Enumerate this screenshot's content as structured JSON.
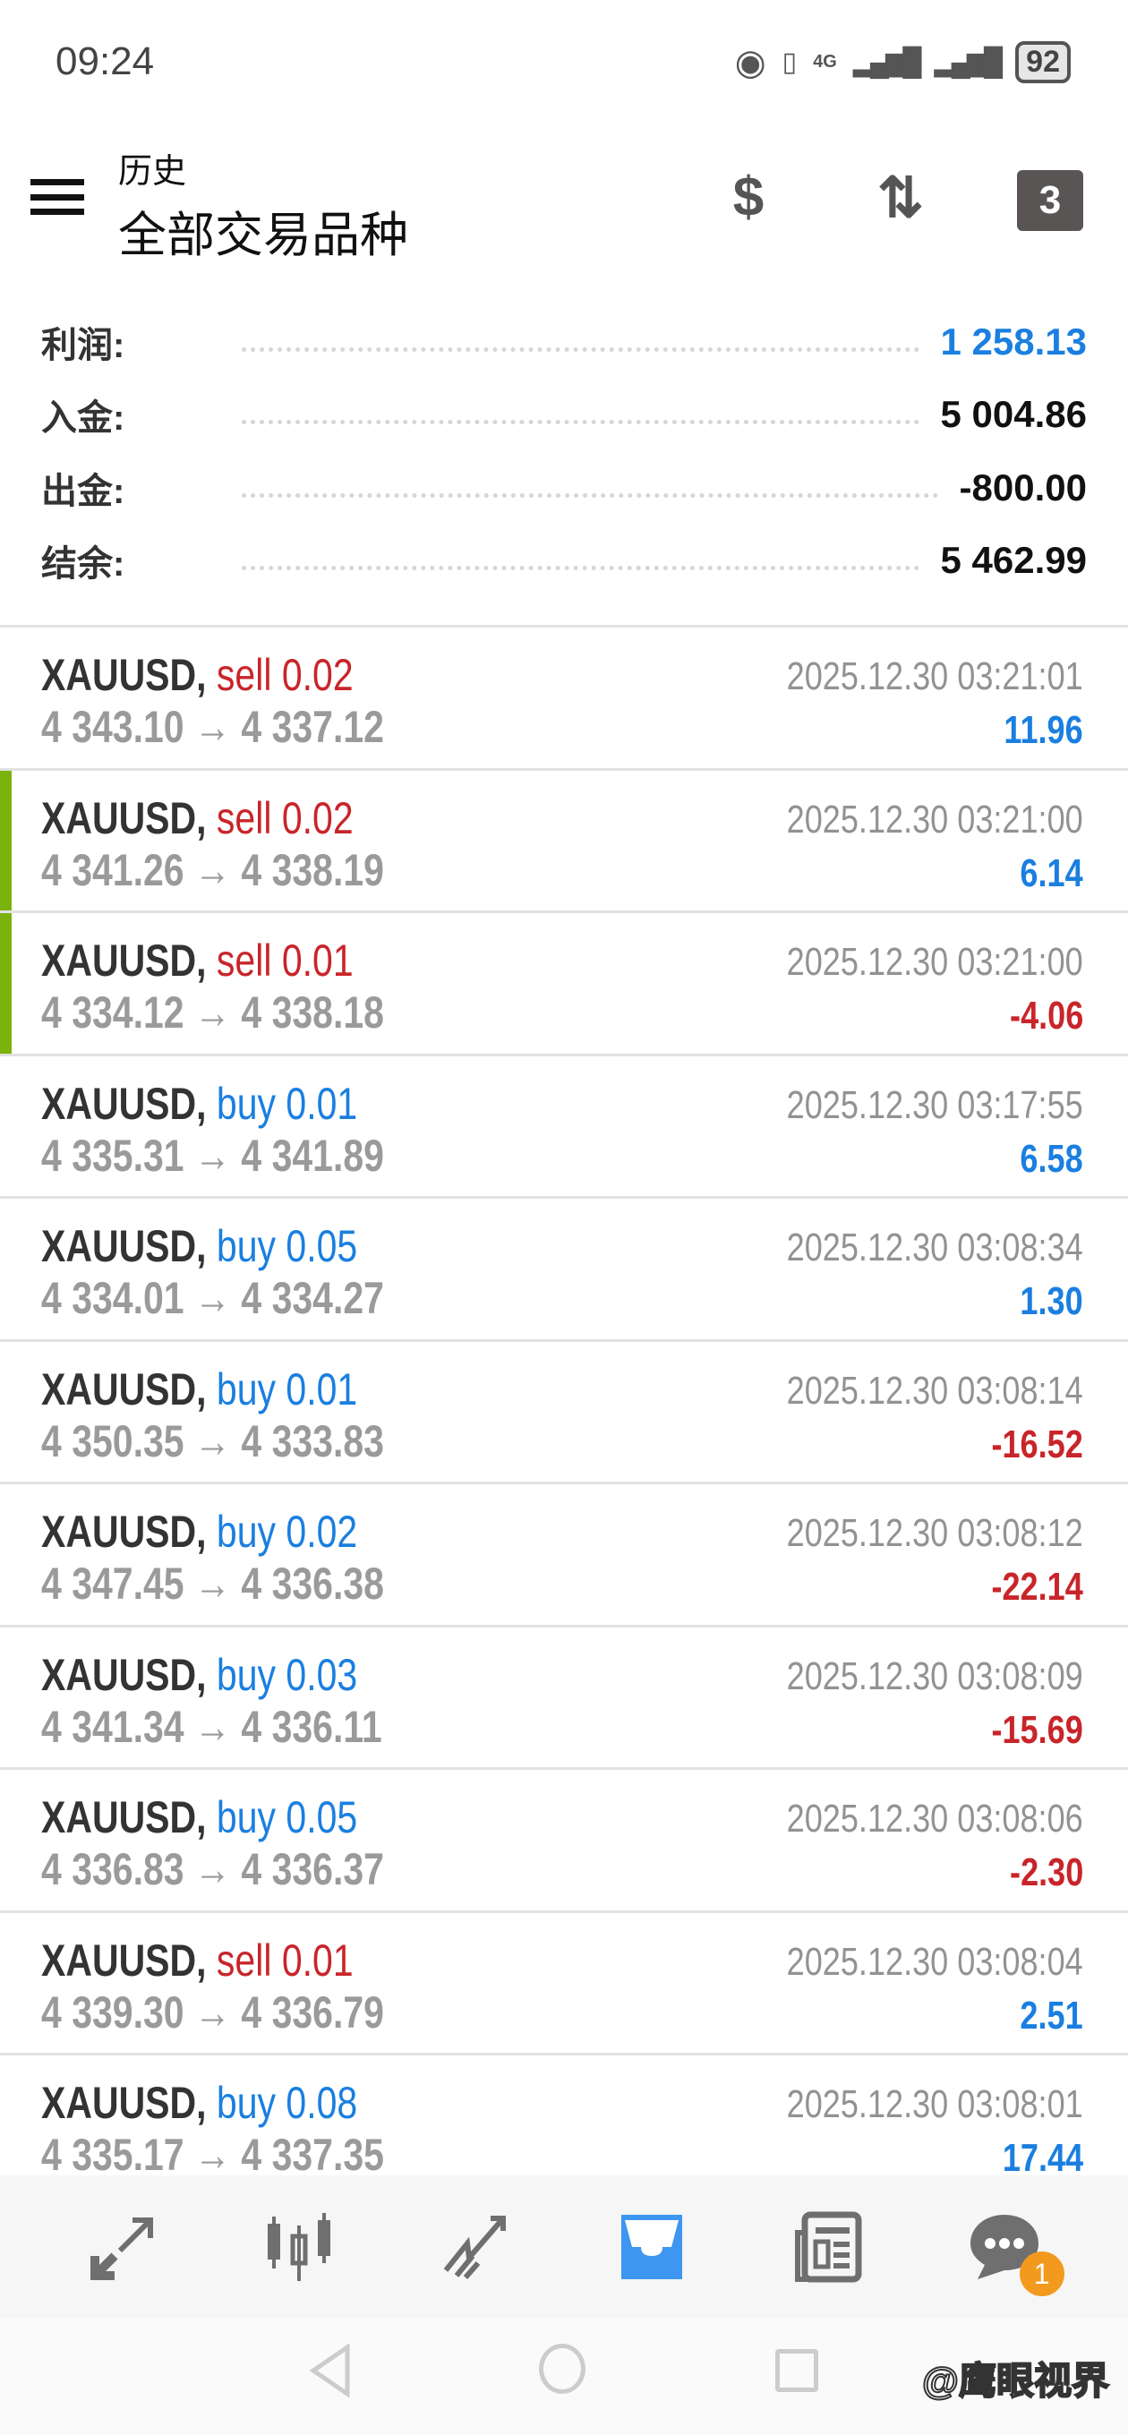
{
  "status_bar": {
    "time": "09:24",
    "network": "4G",
    "battery": "92"
  },
  "header": {
    "subtitle": "历史",
    "title": "全部交易品种",
    "icons": [
      "menu-icon",
      "currency-exchange-icon",
      "sort-icon",
      "calendar-icon"
    ],
    "calendar_day": "3"
  },
  "summary": [
    {
      "label": "利润:",
      "value": "1 258.13",
      "color": "#1a7fe0"
    },
    {
      "label": "入金:",
      "value": "5 004.86",
      "color": "#111111"
    },
    {
      "label": "出金:",
      "value": "-800.00",
      "color": "#111111"
    },
    {
      "label": "结余:",
      "value": "5 462.99",
      "color": "#111111"
    }
  ],
  "colors": {
    "sell": "#c8252a",
    "buy": "#1a7fe0",
    "profit": "#1a7fe0",
    "loss": "#c8252a",
    "accent": "#3d96ef",
    "marker": "#7cb20e"
  },
  "trades": [
    {
      "symbol": "XAUUSD,",
      "side": "sell 0.02",
      "prices": "4 343.10 → 4 337.12",
      "time": "2025.12.30 03:21:01",
      "profit": "11.96",
      "marked": false
    },
    {
      "symbol": "XAUUSD,",
      "side": "sell 0.02",
      "prices": "4 341.26 → 4 338.19",
      "time": "2025.12.30 03:21:00",
      "profit": "6.14",
      "marked": true
    },
    {
      "symbol": "XAUUSD,",
      "side": "sell 0.01",
      "prices": "4 334.12 → 4 338.18",
      "time": "2025.12.30 03:21:00",
      "profit": "-4.06",
      "marked": true
    },
    {
      "symbol": "XAUUSD,",
      "side": "buy 0.01",
      "prices": "4 335.31 → 4 341.89",
      "time": "2025.12.30 03:17:55",
      "profit": "6.58",
      "marked": false
    },
    {
      "symbol": "XAUUSD,",
      "side": "buy 0.05",
      "prices": "4 334.01 → 4 334.27",
      "time": "2025.12.30 03:08:34",
      "profit": "1.30",
      "marked": false
    },
    {
      "symbol": "XAUUSD,",
      "side": "buy 0.01",
      "prices": "4 350.35 → 4 333.83",
      "time": "2025.12.30 03:08:14",
      "profit": "-16.52",
      "marked": false
    },
    {
      "symbol": "XAUUSD,",
      "side": "buy 0.02",
      "prices": "4 347.45 → 4 336.38",
      "time": "2025.12.30 03:08:12",
      "profit": "-22.14",
      "marked": false
    },
    {
      "symbol": "XAUUSD,",
      "side": "buy 0.03",
      "prices": "4 341.34 → 4 336.11",
      "time": "2025.12.30 03:08:09",
      "profit": "-15.69",
      "marked": false
    },
    {
      "symbol": "XAUUSD,",
      "side": "buy 0.05",
      "prices": "4 336.83 → 4 336.37",
      "time": "2025.12.30 03:08:06",
      "profit": "-2.30",
      "marked": false
    },
    {
      "symbol": "XAUUSD,",
      "side": "sell 0.01",
      "prices": "4 339.30 → 4 336.79",
      "time": "2025.12.30 03:08:04",
      "profit": "2.51",
      "marked": false
    },
    {
      "symbol": "XAUUSD,",
      "side": "buy 0.08",
      "prices": "4 335.17 → 4 337.35",
      "time": "2025.12.30 03:08:01",
      "profit": "17.44",
      "marked": false
    }
  ],
  "bottom_nav": {
    "items": [
      "quotes-icon",
      "chart-icon",
      "trade-icon",
      "history-icon",
      "news-icon",
      "chat-icon"
    ],
    "active": "history-icon",
    "chat_badge": "1"
  },
  "watermark": "@鹰眼视界"
}
